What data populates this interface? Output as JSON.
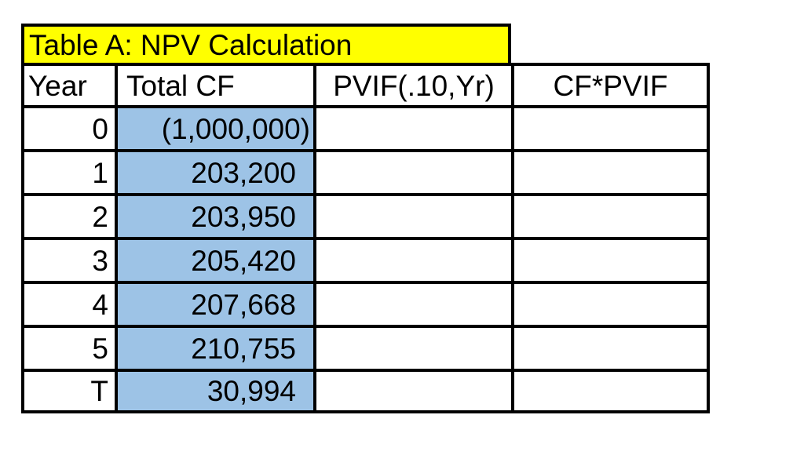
{
  "title": "Table A: NPV Calculation",
  "colors": {
    "title_bg": "#FFFF00",
    "cf_column_bg": "#9DC3E6",
    "border": "#000000",
    "text": "#000000"
  },
  "table": {
    "headers": [
      "Year",
      "Total CF",
      "PVIF(.10,Yr)",
      "CF*PVIF"
    ],
    "rows": [
      {
        "year": "0",
        "total_cf": "(1,000,000)",
        "pvif": "",
        "cf_pvif": ""
      },
      {
        "year": "1",
        "total_cf": "203,200",
        "pvif": "",
        "cf_pvif": ""
      },
      {
        "year": "2",
        "total_cf": "203,950",
        "pvif": "",
        "cf_pvif": ""
      },
      {
        "year": "3",
        "total_cf": "205,420",
        "pvif": "",
        "cf_pvif": ""
      },
      {
        "year": "4",
        "total_cf": "207,668",
        "pvif": "",
        "cf_pvif": ""
      },
      {
        "year": "5",
        "total_cf": "210,755",
        "pvif": "",
        "cf_pvif": ""
      },
      {
        "year": "T",
        "total_cf": "30,994",
        "pvif": "",
        "cf_pvif": ""
      }
    ]
  }
}
